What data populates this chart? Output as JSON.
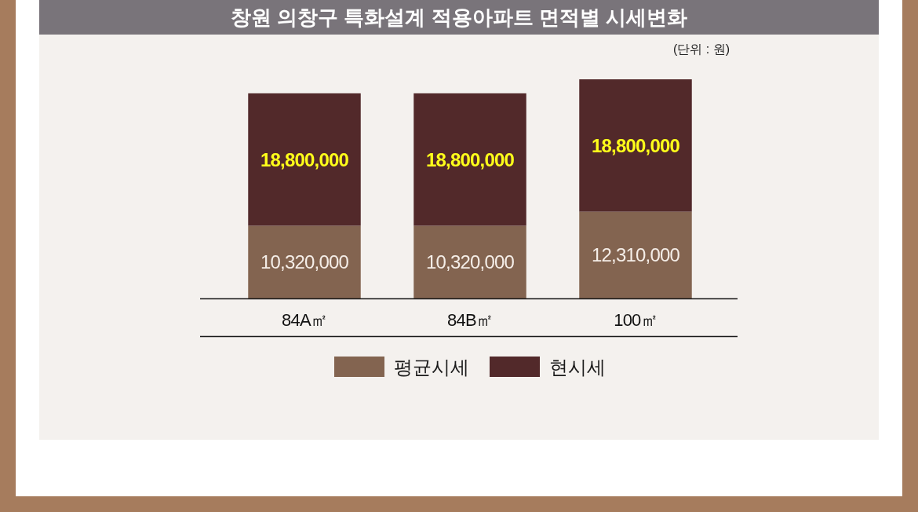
{
  "chart_data": {
    "type": "bar",
    "title": "창원 의창구 특화설계 적용아파트 면적별 시세변화",
    "annotations": [
      "(단위 : 원)"
    ],
    "categories": [
      "84A㎡",
      "84B㎡",
      "100㎡"
    ],
    "stacked": true,
    "series": [
      {
        "name": "평균시세",
        "color": "#836450",
        "values": [
          10320000,
          10320000,
          12310000
        ],
        "value_labels": [
          "10,320,000",
          "10,320,000",
          "12,310,000"
        ]
      },
      {
        "name": "현시세",
        "color": "#52292a",
        "values": [
          18800000,
          18800000,
          18800000
        ],
        "value_labels": [
          "18,800,000",
          "18,800,000",
          "18,800,000"
        ]
      }
    ],
    "legend": "bottom"
  }
}
